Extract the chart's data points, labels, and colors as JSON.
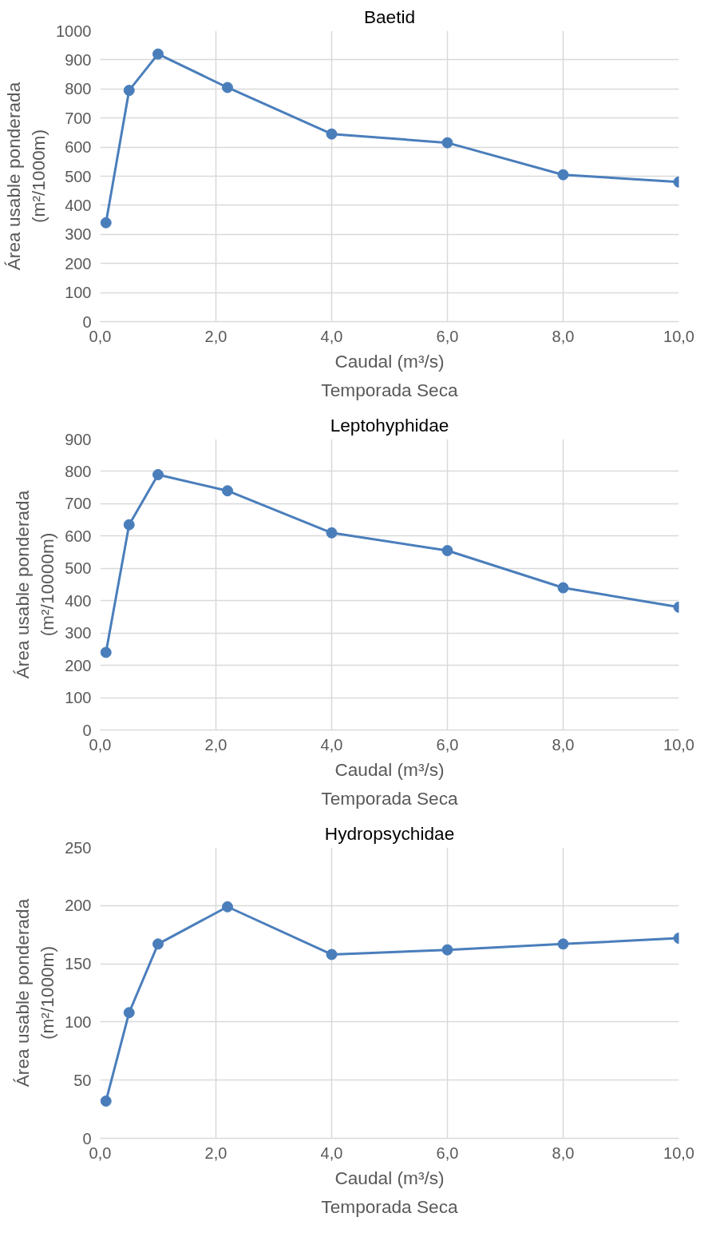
{
  "chart_data": [
    {
      "type": "line",
      "title": "Baetid",
      "xlabel": "Caudal (m³/s)",
      "ylabel": "Área usable ponderada\n(m²/1000m)",
      "annotations": [
        "Temporada Seca"
      ],
      "x": [
        0.1,
        0.5,
        1.0,
        2.2,
        4.0,
        6.0,
        8.0,
        10.0
      ],
      "series": [
        {
          "color": "#4a7ebb",
          "values": [
            340,
            795,
            920,
            805,
            645,
            615,
            505,
            480
          ]
        }
      ],
      "xlim": [
        0,
        10
      ],
      "xticks": [
        {
          "value": 0,
          "label": "0,0"
        },
        {
          "value": 2,
          "label": "2,0"
        },
        {
          "value": 4,
          "label": "4,0"
        },
        {
          "value": 6,
          "label": "6,0"
        },
        {
          "value": 8,
          "label": "8,0"
        },
        {
          "value": 10,
          "label": "10,0"
        }
      ],
      "ylim": [
        0,
        1000
      ],
      "yticks": [
        0,
        100,
        200,
        300,
        400,
        500,
        600,
        700,
        800,
        900,
        1000
      ],
      "grid": true,
      "marker": "circle",
      "line_style": "solid"
    },
    {
      "type": "line",
      "title": "Leptohyphidae",
      "xlabel": "Caudal (m³/s)",
      "ylabel": "Área usable ponderada\n(m²/10000m)",
      "annotations": [
        "Temporada Seca"
      ],
      "x": [
        0.1,
        0.5,
        1.0,
        2.2,
        4.0,
        6.0,
        8.0,
        10.0
      ],
      "series": [
        {
          "color": "#4a7ebb",
          "values": [
            240,
            635,
            790,
            740,
            610,
            555,
            440,
            380
          ]
        }
      ],
      "xlim": [
        0,
        10
      ],
      "xticks": [
        {
          "value": 0,
          "label": "0,0"
        },
        {
          "value": 2,
          "label": "2,0"
        },
        {
          "value": 4,
          "label": "4,0"
        },
        {
          "value": 6,
          "label": "6,0"
        },
        {
          "value": 8,
          "label": "8,0"
        },
        {
          "value": 10,
          "label": "10,0"
        }
      ],
      "ylim": [
        0,
        900
      ],
      "yticks": [
        0,
        100,
        200,
        300,
        400,
        500,
        600,
        700,
        800,
        900
      ],
      "grid": true,
      "marker": "circle",
      "line_style": "solid"
    },
    {
      "type": "line",
      "title": "Hydropsychidae",
      "xlabel": "Caudal (m³/s)",
      "ylabel": "Área usable ponderada\n(m²/1000m)",
      "annotations": [
        "Temporada Seca"
      ],
      "x": [
        0.1,
        0.5,
        1.0,
        2.2,
        4.0,
        6.0,
        8.0,
        10.0
      ],
      "series": [
        {
          "color": "#4a7ebb",
          "values": [
            32,
            108,
            167,
            199,
            158,
            162,
            167,
            172
          ]
        }
      ],
      "xlim": [
        0,
        10
      ],
      "xticks": [
        {
          "value": 0,
          "label": "0,0"
        },
        {
          "value": 2,
          "label": "2,0"
        },
        {
          "value": 4,
          "label": "4,0"
        },
        {
          "value": 6,
          "label": "6,0"
        },
        {
          "value": 8,
          "label": "8,0"
        },
        {
          "value": 10,
          "label": "10,0"
        }
      ],
      "ylim": [
        0,
        250
      ],
      "yticks": [
        0,
        50,
        100,
        150,
        200,
        250
      ],
      "grid": true,
      "marker": "circle",
      "line_style": "solid"
    }
  ]
}
